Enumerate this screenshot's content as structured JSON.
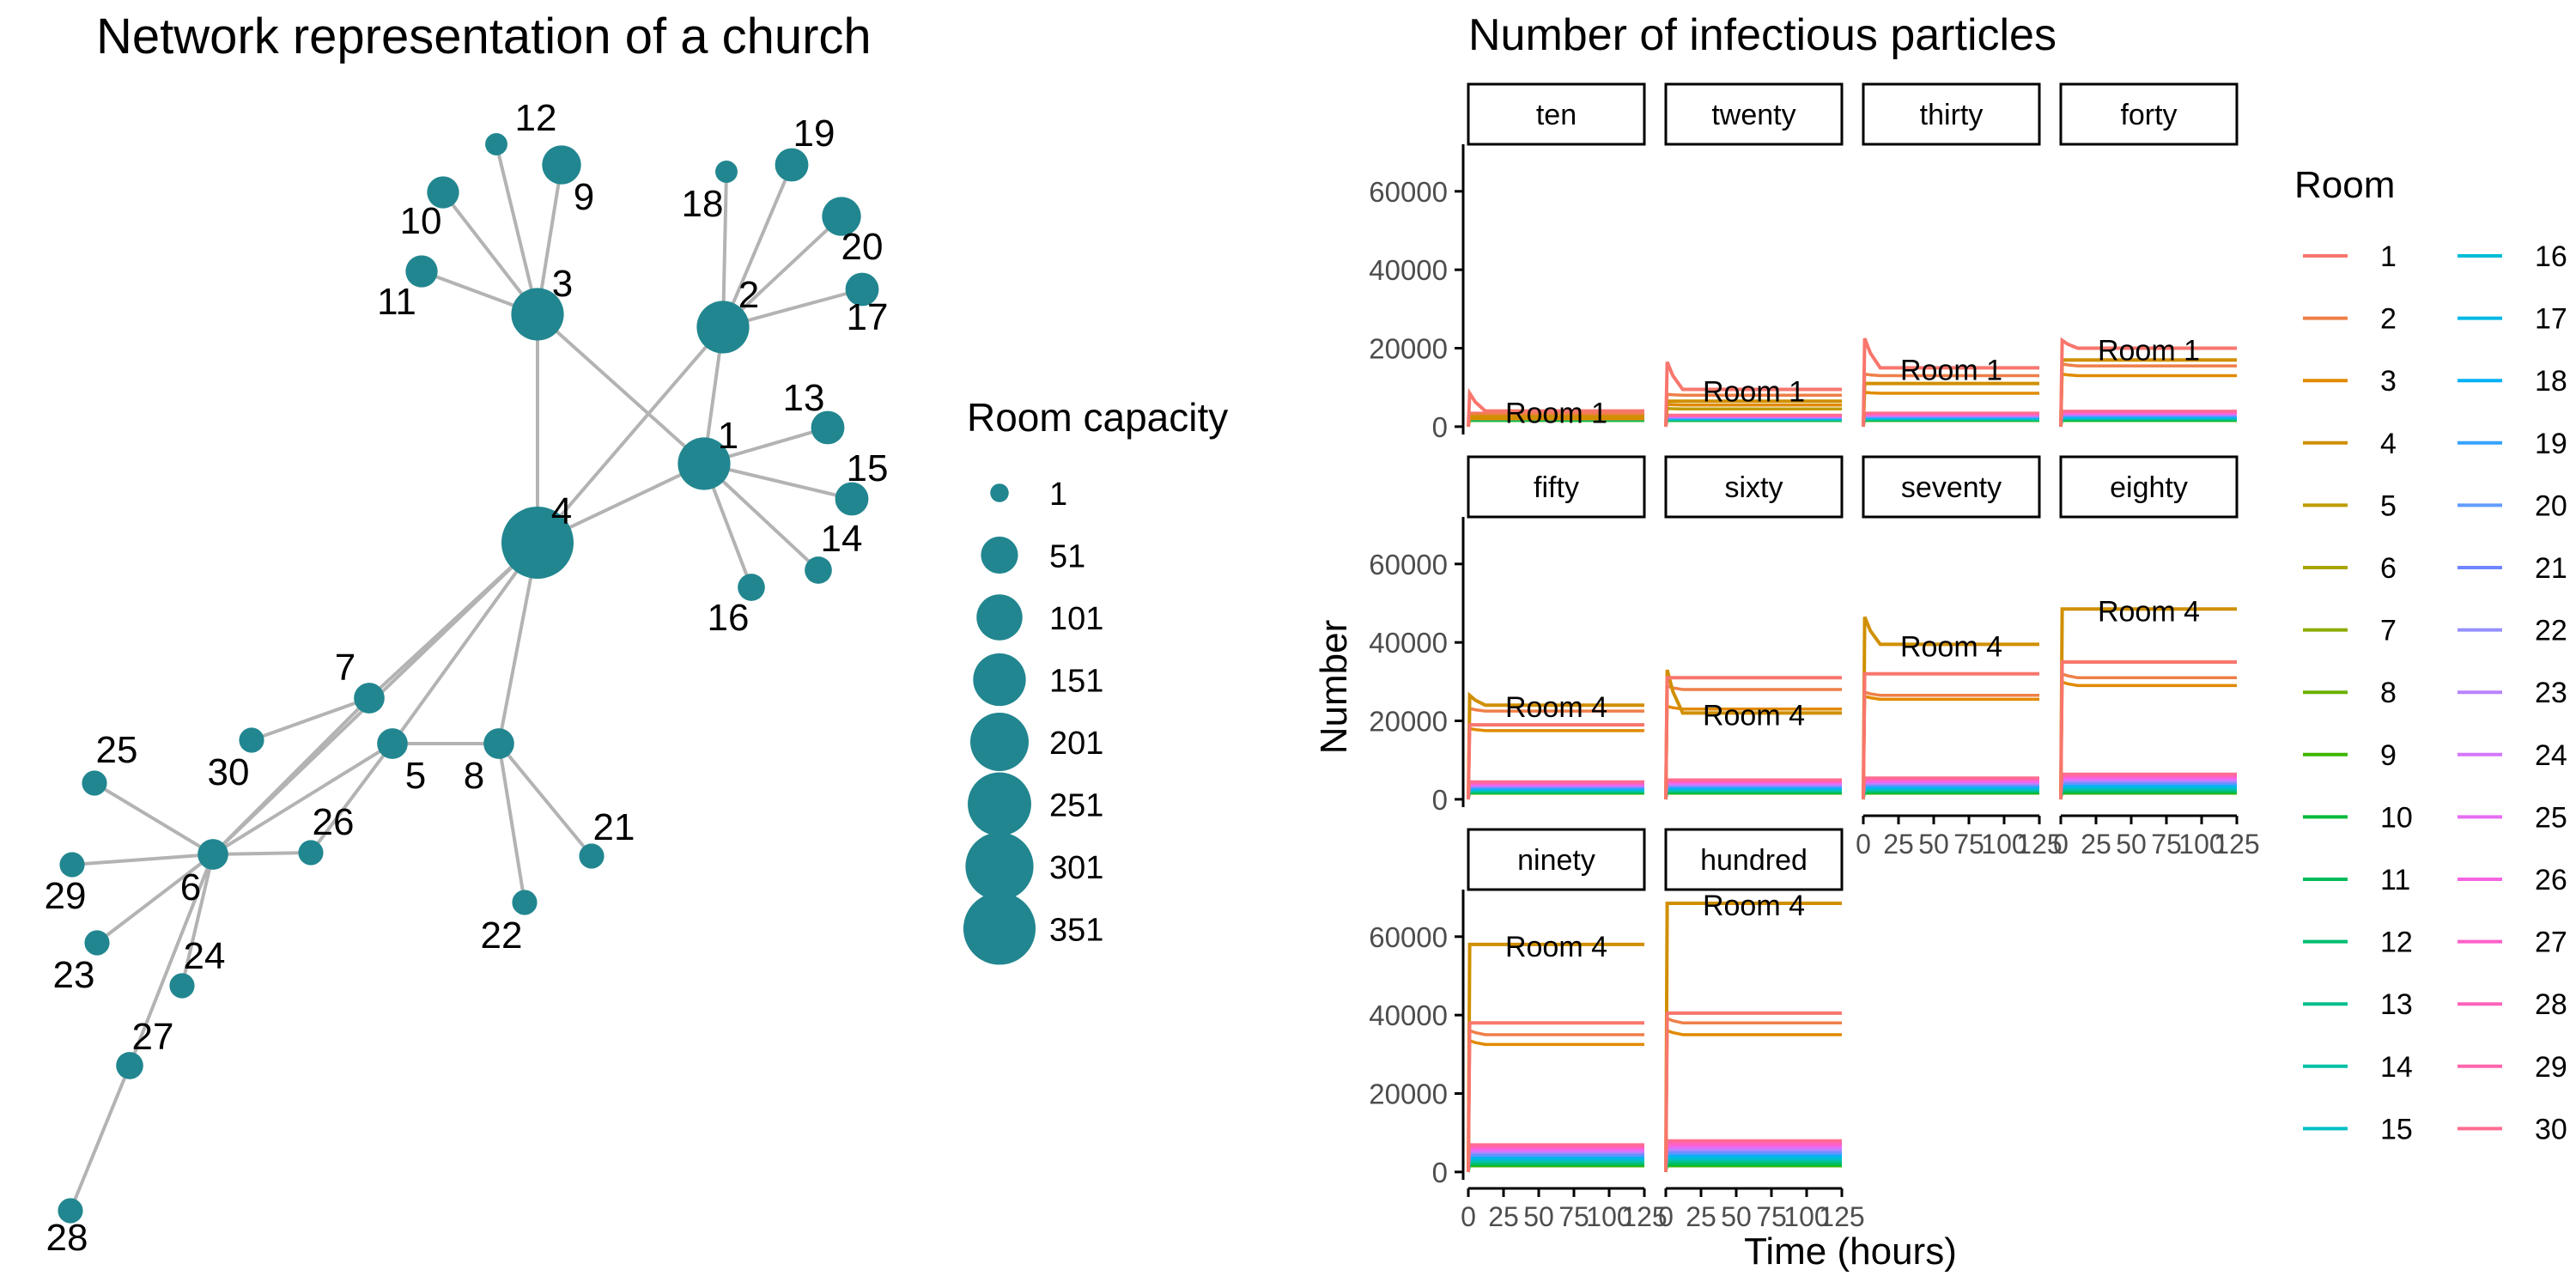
{
  "network": {
    "title": "Network representation of a church",
    "legend_title": "Room capacity",
    "legend_levels": [
      1,
      51,
      101,
      151,
      201,
      251,
      301,
      351
    ],
    "node_color": "#21868f",
    "edge_color": "#b3b3b3",
    "nodes": [
      {
        "id": "1",
        "capacity": 150
      },
      {
        "id": "2",
        "capacity": 150
      },
      {
        "id": "3",
        "capacity": 150
      },
      {
        "id": "4",
        "capacity": 350
      },
      {
        "id": "5",
        "capacity": 25
      },
      {
        "id": "6",
        "capacity": 25
      },
      {
        "id": "7",
        "capacity": 25
      },
      {
        "id": "8",
        "capacity": 25
      },
      {
        "id": "9",
        "capacity": 60
      },
      {
        "id": "10",
        "capacity": 30
      },
      {
        "id": "11",
        "capacity": 30
      },
      {
        "id": "12",
        "capacity": 5
      },
      {
        "id": "13",
        "capacity": 35
      },
      {
        "id": "14",
        "capacity": 15
      },
      {
        "id": "15",
        "capacity": 35
      },
      {
        "id": "16",
        "capacity": 15
      },
      {
        "id": "17",
        "capacity": 35
      },
      {
        "id": "18",
        "capacity": 5
      },
      {
        "id": "19",
        "capacity": 35
      },
      {
        "id": "20",
        "capacity": 60
      },
      {
        "id": "21",
        "capacity": 10
      },
      {
        "id": "22",
        "capacity": 10
      },
      {
        "id": "23",
        "capacity": 10
      },
      {
        "id": "24",
        "capacity": 10
      },
      {
        "id": "25",
        "capacity": 10
      },
      {
        "id": "26",
        "capacity": 10
      },
      {
        "id": "27",
        "capacity": 15
      },
      {
        "id": "28",
        "capacity": 10
      },
      {
        "id": "29",
        "capacity": 10
      },
      {
        "id": "30",
        "capacity": 10
      }
    ],
    "edges": [
      [
        "3",
        "12"
      ],
      [
        "3",
        "9"
      ],
      [
        "3",
        "10"
      ],
      [
        "3",
        "11"
      ],
      [
        "3",
        "4"
      ],
      [
        "3",
        "1"
      ],
      [
        "2",
        "18"
      ],
      [
        "2",
        "19"
      ],
      [
        "2",
        "20"
      ],
      [
        "2",
        "17"
      ],
      [
        "2",
        "1"
      ],
      [
        "2",
        "4"
      ],
      [
        "1",
        "13"
      ],
      [
        "1",
        "15"
      ],
      [
        "1",
        "14"
      ],
      [
        "1",
        "16"
      ],
      [
        "1",
        "4"
      ],
      [
        "4",
        "7"
      ],
      [
        "4",
        "5"
      ],
      [
        "4",
        "8"
      ],
      [
        "4",
        "6"
      ],
      [
        "7",
        "30"
      ],
      [
        "7",
        "6"
      ],
      [
        "5",
        "6"
      ],
      [
        "5",
        "8"
      ],
      [
        "5",
        "26"
      ],
      [
        "8",
        "21"
      ],
      [
        "8",
        "22"
      ],
      [
        "6",
        "25"
      ],
      [
        "6",
        "29"
      ],
      [
        "6",
        "23"
      ],
      [
        "6",
        "24"
      ],
      [
        "6",
        "27"
      ],
      [
        "6",
        "26"
      ],
      [
        "27",
        "28"
      ]
    ]
  },
  "chart_data": {
    "type": "line",
    "title": "Number of infectious particles",
    "xlabel": "Time (hours)",
    "ylabel": "Number",
    "xlim": [
      0,
      125
    ],
    "ylim": [
      -2000,
      72000
    ],
    "x_ticks": [
      0,
      25,
      50,
      75,
      100,
      125
    ],
    "y_ticks": [
      0,
      20000,
      40000,
      60000
    ],
    "legend_title": "Room",
    "rooms": [
      "1",
      "2",
      "3",
      "4",
      "5",
      "6",
      "7",
      "8",
      "9",
      "10",
      "11",
      "12",
      "13",
      "14",
      "15",
      "16",
      "17",
      "18",
      "19",
      "20",
      "21",
      "22",
      "23",
      "24",
      "25",
      "26",
      "27",
      "28",
      "29",
      "30"
    ],
    "room_colors": [
      "#f8766d",
      "#ef7f48",
      "#e18a00",
      "#d08f00",
      "#be9c00",
      "#a8a400",
      "#8cab00",
      "#6bb100",
      "#3cb600",
      "#00ba38",
      "#00bc58",
      "#00be70",
      "#00c08d",
      "#00c1a7",
      "#00bfc4",
      "#00bcd6",
      "#00b8e5",
      "#00b0f6",
      "#35a2ff",
      "#619cff",
      "#6f86ff",
      "#9590ff",
      "#b983ff",
      "#d575fe",
      "#e76bf3",
      "#f564e3",
      "#ff61c9",
      "#ff62bc",
      "#ff65ac",
      "#ff6c91"
    ],
    "panels": [
      {
        "name": "ten",
        "annotation": "Room 1",
        "room1_final": 4000,
        "room1_peak": 8500,
        "room4_final": 2500,
        "others_final": [
          3200,
          2000
        ],
        "low_band": [
          1500,
          3500
        ]
      },
      {
        "name": "twenty",
        "annotation": "Room 1",
        "room1_final": 9500,
        "room1_peak": 16500,
        "room4_final": 6500,
        "others_final": [
          8000,
          5500,
          4500
        ],
        "low_band": [
          1500,
          3000
        ]
      },
      {
        "name": "thirty",
        "annotation": "Room 1",
        "room1_final": 15000,
        "room1_peak": 22500,
        "room4_final": 11000,
        "others_final": [
          13000,
          8500
        ],
        "low_band": [
          1500,
          3500
        ]
      },
      {
        "name": "forty",
        "annotation": "Room 1",
        "room1_final": 20000,
        "room1_peak": 22000,
        "room4_final": 17000,
        "others_final": [
          15500,
          13000
        ],
        "low_band": [
          1500,
          4000
        ]
      },
      {
        "name": "fifty",
        "annotation": "Room 4",
        "room1_final": 19000,
        "room1_peak": 19000,
        "room4_final": 24000,
        "room4_peak": 26500,
        "others_final": [
          22500,
          17500
        ],
        "low_band": [
          1500,
          4500
        ]
      },
      {
        "name": "sixty",
        "annotation": "Room 4",
        "room1_final": 31000,
        "room1_peak": 31000,
        "room4_final": 22000,
        "room4_peak": 33000,
        "others_final": [
          28000,
          23000
        ],
        "low_band": [
          1500,
          5000
        ]
      },
      {
        "name": "seventy",
        "annotation": "Room 4",
        "room1_final": 32000,
        "room1_peak": 32000,
        "room4_final": 39500,
        "room4_peak": 46500,
        "others_final": [
          26500,
          25500
        ],
        "low_band": [
          1500,
          5500
        ]
      },
      {
        "name": "eighty",
        "annotation": "Room 4",
        "room1_final": 35000,
        "room1_peak": 35000,
        "room4_final": 48500,
        "room4_peak": 48500,
        "others_final": [
          31000,
          29000
        ],
        "low_band": [
          1500,
          6500
        ]
      },
      {
        "name": "ninety",
        "annotation": "Room 4",
        "room1_final": 38000,
        "room1_peak": 38000,
        "room4_final": 58000,
        "room4_peak": 58000,
        "others_final": [
          35000,
          32500
        ],
        "low_band": [
          1500,
          7000
        ]
      },
      {
        "name": "hundred",
        "annotation": "Room 4",
        "room1_final": 40500,
        "room1_peak": 40500,
        "room4_final": 68500,
        "room4_peak": 68500,
        "others_final": [
          38000,
          35000
        ],
        "low_band": [
          1500,
          8000
        ]
      }
    ]
  }
}
